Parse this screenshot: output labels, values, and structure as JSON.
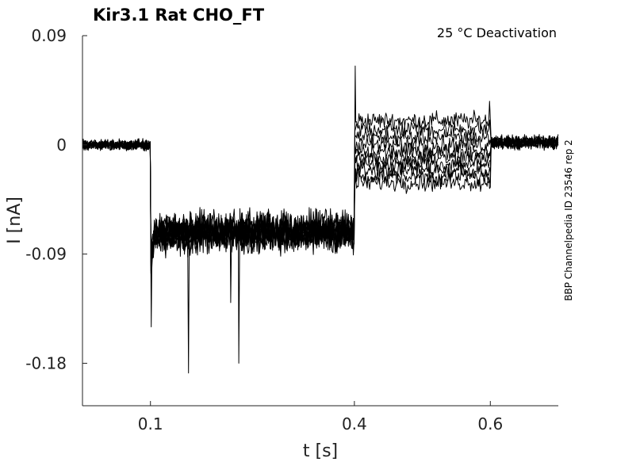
{
  "chart_data": {
    "type": "line",
    "title": "Kir3.1  Rat  CHO_FT",
    "annotation": "25 °C  Deactivation",
    "side_label": "BBP Channelpedia ID 23546 rep 2",
    "xlabel": "t [s]",
    "ylabel": "I [nA]",
    "xlim": [
      0.0,
      0.7
    ],
    "ylim": [
      -0.215,
      0.09
    ],
    "x_ticks": [
      {
        "value": 0.1,
        "label": "0.1"
      },
      {
        "value": 0.4,
        "label": "0.4"
      },
      {
        "value": 0.6,
        "label": "0.6"
      }
    ],
    "y_ticks": [
      {
        "value": 0.09,
        "label": "0.09"
      },
      {
        "value": 0,
        "label": "0"
      },
      {
        "value": -0.09,
        "label": "-0.09"
      },
      {
        "value": -0.18,
        "label": "-0.18"
      }
    ],
    "grid": false,
    "legend": "none",
    "protocol": {
      "baseline_end": 0.1,
      "hold_end": 0.4,
      "test_end": 0.6,
      "t_end": 0.7,
      "hold_level": -0.072,
      "step_end_level": 0.002,
      "test_levels": [
        0.02,
        0.013,
        0.006,
        0.0,
        -0.006,
        -0.011,
        -0.016,
        -0.021,
        -0.026,
        -0.031
      ],
      "onset_spike": -0.15,
      "step_spike": 0.065,
      "end_spike": 0.036,
      "transient_dips": [
        {
          "t": 0.156,
          "value": -0.188
        },
        {
          "t": 0.23,
          "value": -0.18
        },
        {
          "t": 0.218,
          "value": -0.13
        }
      ]
    }
  }
}
